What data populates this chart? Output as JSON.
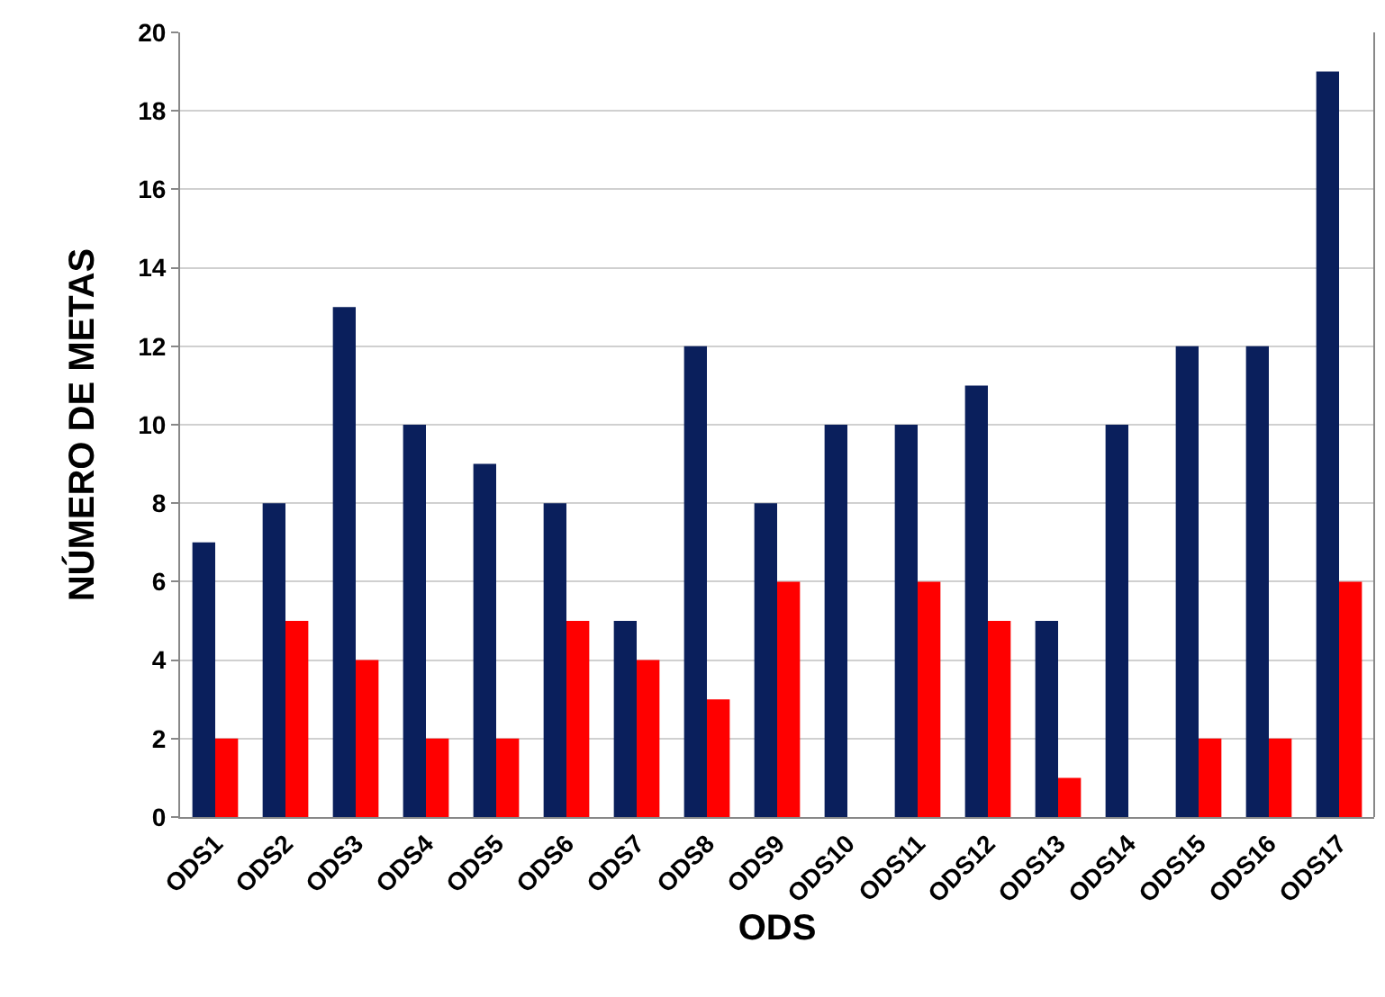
{
  "chart_data": {
    "type": "bar",
    "xlabel": "ODS",
    "ylabel": "NÚMERO DE METAS",
    "categories": [
      "ODS1",
      "ODS2",
      "ODS3",
      "ODS4",
      "ODS5",
      "ODS6",
      "ODS7",
      "ODS8",
      "ODS9",
      "ODS10",
      "ODS11",
      "ODS12",
      "ODS13",
      "ODS14",
      "ODS15",
      "ODS16",
      "ODS17"
    ],
    "series": [
      {
        "color": "#0a1f5c",
        "values": [
          7,
          8,
          13,
          10,
          9,
          8,
          5,
          12,
          8,
          10,
          10,
          11,
          5,
          10,
          12,
          12,
          19
        ]
      },
      {
        "color": "#ff0000",
        "values": [
          2,
          5,
          4,
          2,
          2,
          5,
          4,
          3,
          6,
          0,
          6,
          5,
          1,
          0,
          2,
          2,
          6
        ]
      }
    ],
    "ylim": [
      0,
      20
    ],
    "yticks": [
      0,
      2,
      4,
      6,
      8,
      10,
      12,
      14,
      16,
      18,
      20
    ],
    "grid": "y"
  }
}
